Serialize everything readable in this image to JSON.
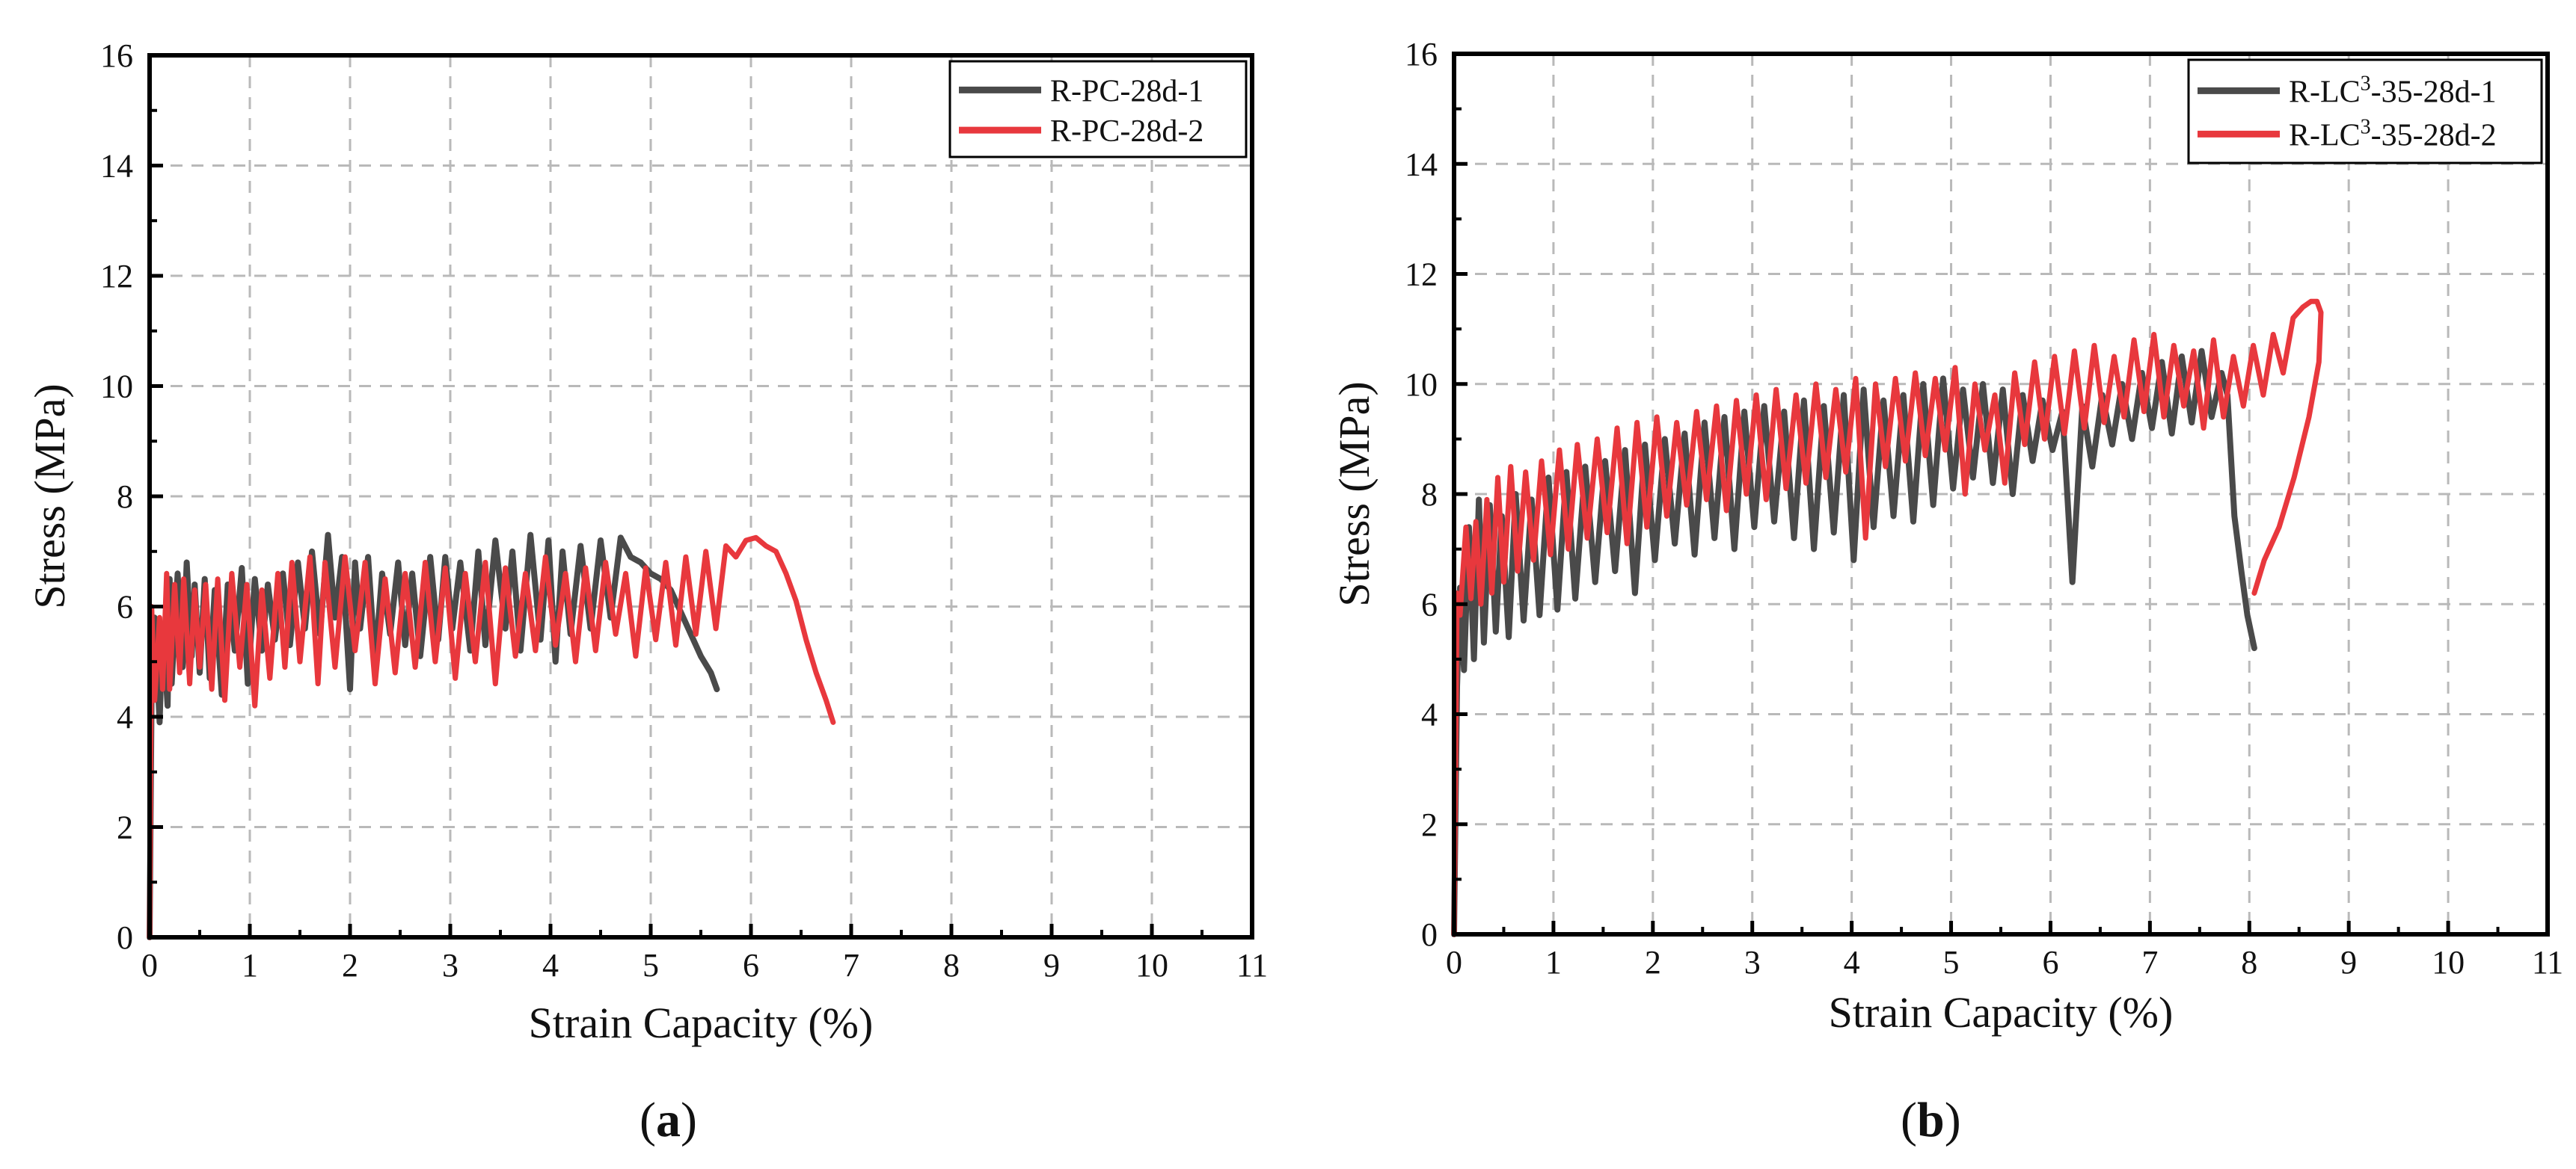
{
  "figure": {
    "panel_labels": [
      {
        "letter": "a"
      },
      {
        "letter": "b"
      }
    ]
  },
  "chart_data": [
    {
      "type": "line",
      "title": "",
      "xlabel": "Strain Capacity (%)",
      "ylabel": "Stress (MPa)",
      "xlim": [
        0,
        11
      ],
      "ylim": [
        0,
        16
      ],
      "xticks": [
        0,
        1,
        2,
        3,
        4,
        5,
        6,
        7,
        8,
        9,
        10,
        11
      ],
      "yticks": [
        0,
        2,
        4,
        6,
        8,
        10,
        12,
        14,
        16
      ],
      "grid": true,
      "legend_position": "top-right",
      "series": [
        {
          "name": "R-PC-28d-1",
          "name_sup": "",
          "name_rest": "",
          "color": "#4a4a4a",
          "x": [
            0,
            0.02,
            0.05,
            0.1,
            0.13,
            0.18,
            0.2,
            0.22,
            0.28,
            0.33,
            0.37,
            0.42,
            0.45,
            0.5,
            0.55,
            0.6,
            0.65,
            0.72,
            0.78,
            0.85,
            0.92,
            0.98,
            1.05,
            1.12,
            1.18,
            1.25,
            1.33,
            1.4,
            1.48,
            1.55,
            1.62,
            1.7,
            1.78,
            1.85,
            1.92,
            2.0,
            2.05,
            2.1,
            2.18,
            2.25,
            2.32,
            2.4,
            2.48,
            2.55,
            2.62,
            2.7,
            2.8,
            2.88,
            2.95,
            3.02,
            3.1,
            3.2,
            3.28,
            3.35,
            3.45,
            3.55,
            3.62,
            3.7,
            3.8,
            3.9,
            3.98,
            4.05,
            4.12,
            4.2,
            4.3,
            4.4,
            4.5,
            4.6,
            4.7,
            4.8,
            4.9,
            5.0,
            5.1,
            5.2,
            5.3,
            5.4,
            5.5,
            5.6,
            5.66
          ],
          "y": [
            0,
            4.5,
            5.8,
            3.9,
            5.6,
            4.2,
            6.5,
            4.6,
            6.6,
            4.9,
            6.8,
            5.1,
            6.4,
            4.8,
            6.5,
            4.7,
            6.3,
            4.4,
            6.4,
            5.2,
            6.7,
            4.6,
            6.5,
            5.2,
            6.4,
            5.4,
            6.6,
            5.3,
            6.8,
            5.6,
            7.0,
            5.5,
            7.3,
            5.8,
            6.9,
            4.5,
            6.8,
            5.6,
            6.9,
            5.0,
            6.6,
            5.5,
            6.8,
            5.3,
            6.6,
            5.1,
            6.9,
            5.4,
            6.9,
            5.6,
            6.8,
            5.2,
            7.0,
            5.3,
            7.2,
            5.6,
            7.0,
            5.2,
            7.3,
            5.4,
            7.2,
            5.0,
            7.0,
            5.5,
            7.1,
            5.6,
            7.2,
            5.8,
            7.25,
            6.9,
            6.8,
            6.6,
            6.5,
            6.3,
            5.9,
            5.5,
            5.1,
            4.8,
            4.5
          ]
        },
        {
          "name": "R-PC-28d-2",
          "name_sup": "",
          "name_rest": "",
          "color": "#e8383d",
          "x": [
            0,
            0.02,
            0.05,
            0.1,
            0.13,
            0.17,
            0.2,
            0.25,
            0.3,
            0.34,
            0.4,
            0.45,
            0.5,
            0.56,
            0.62,
            0.68,
            0.75,
            0.82,
            0.9,
            0.97,
            1.05,
            1.12,
            1.2,
            1.28,
            1.35,
            1.42,
            1.5,
            1.6,
            1.68,
            1.75,
            1.85,
            1.95,
            2.05,
            2.15,
            2.25,
            2.35,
            2.45,
            2.55,
            2.65,
            2.75,
            2.85,
            2.95,
            3.05,
            3.15,
            3.25,
            3.35,
            3.45,
            3.55,
            3.65,
            3.75,
            3.85,
            3.95,
            4.05,
            4.15,
            4.25,
            4.35,
            4.45,
            4.55,
            4.65,
            4.75,
            4.85,
            4.95,
            5.05,
            5.15,
            5.25,
            5.35,
            5.45,
            5.55,
            5.65,
            5.75,
            5.85,
            5.95,
            6.05,
            6.15,
            6.25,
            6.35,
            6.45,
            6.55,
            6.65,
            6.75,
            6.82
          ],
          "y": [
            0,
            6.0,
            4.3,
            5.8,
            4.5,
            6.6,
            4.5,
            6.4,
            4.8,
            6.5,
            4.6,
            6.3,
            4.9,
            6.4,
            4.5,
            6.5,
            4.3,
            6.6,
            4.9,
            6.4,
            4.2,
            6.3,
            4.7,
            6.6,
            4.9,
            6.8,
            5.0,
            6.9,
            4.6,
            6.8,
            4.9,
            6.9,
            5.2,
            6.8,
            4.6,
            6.5,
            4.8,
            6.6,
            4.9,
            6.8,
            5.0,
            6.7,
            4.7,
            6.6,
            5.0,
            6.8,
            4.6,
            6.7,
            5.1,
            6.6,
            5.2,
            6.9,
            5.3,
            6.6,
            5.0,
            6.7,
            5.2,
            6.8,
            5.5,
            6.6,
            5.1,
            6.7,
            5.4,
            6.8,
            5.3,
            6.9,
            5.5,
            7.0,
            5.6,
            7.1,
            6.9,
            7.2,
            7.25,
            7.1,
            7.0,
            6.6,
            6.1,
            5.4,
            4.8,
            4.3,
            3.9
          ]
        }
      ]
    },
    {
      "type": "line",
      "title": "",
      "xlabel": "Strain Capacity (%)",
      "ylabel": "Stress (MPa)",
      "xlim": [
        0,
        11
      ],
      "ylim": [
        0,
        16
      ],
      "xticks": [
        0,
        1,
        2,
        3,
        4,
        5,
        6,
        7,
        8,
        9,
        10,
        11
      ],
      "yticks": [
        0,
        2,
        4,
        6,
        8,
        10,
        12,
        14,
        16
      ],
      "grid": true,
      "legend_position": "top-right",
      "series": [
        {
          "name": "R-LC",
          "name_sup": "3",
          "name_rest": "-35-28d-1",
          "color": "#4a4a4a",
          "x": [
            0,
            0.03,
            0.06,
            0.1,
            0.15,
            0.2,
            0.25,
            0.3,
            0.36,
            0.42,
            0.48,
            0.55,
            0.62,
            0.7,
            0.78,
            0.86,
            0.95,
            1.04,
            1.13,
            1.22,
            1.32,
            1.42,
            1.52,
            1.62,
            1.72,
            1.82,
            1.92,
            2.02,
            2.12,
            2.22,
            2.32,
            2.42,
            2.52,
            2.62,
            2.72,
            2.82,
            2.92,
            3.02,
            3.12,
            3.22,
            3.32,
            3.42,
            3.52,
            3.62,
            3.72,
            3.82,
            3.92,
            4.02,
            4.12,
            4.22,
            4.32,
            4.42,
            4.52,
            4.62,
            4.72,
            4.82,
            4.92,
            5.02,
            5.12,
            5.22,
            5.32,
            5.42,
            5.52,
            5.62,
            5.72,
            5.82,
            5.92,
            6.02,
            6.12,
            6.22,
            6.32,
            6.42,
            6.52,
            6.62,
            6.72,
            6.82,
            6.92,
            7.02,
            7.12,
            7.22,
            7.32,
            7.42,
            7.52,
            7.62,
            7.72,
            7.78,
            7.85,
            7.92,
            7.98,
            8.05
          ],
          "y": [
            0,
            4.5,
            6.3,
            4.8,
            7.4,
            5.0,
            7.9,
            5.3,
            7.8,
            5.5,
            7.6,
            5.4,
            8.0,
            5.7,
            7.9,
            5.8,
            8.3,
            5.9,
            8.4,
            6.1,
            8.5,
            6.4,
            8.6,
            6.6,
            8.8,
            6.2,
            8.9,
            6.8,
            9.0,
            7.1,
            9.1,
            6.9,
            9.3,
            7.2,
            9.4,
            7.0,
            9.5,
            7.4,
            9.6,
            7.5,
            9.5,
            7.2,
            9.7,
            7.0,
            9.6,
            7.3,
            9.8,
            6.8,
            9.9,
            7.4,
            9.7,
            7.6,
            9.8,
            7.5,
            10.0,
            7.8,
            10.1,
            8.1,
            9.9,
            8.3,
            10.0,
            8.2,
            9.9,
            8.0,
            9.8,
            8.6,
            9.7,
            8.8,
            9.5,
            6.4,
            9.6,
            8.5,
            9.8,
            8.9,
            10.0,
            9.0,
            10.2,
            9.2,
            10.4,
            9.1,
            10.5,
            9.3,
            10.6,
            9.4,
            10.2,
            9.8,
            7.6,
            6.6,
            5.8,
            5.2
          ]
        },
        {
          "name": "R-LC",
          "name_sup": "3",
          "name_rest": "-35-28d-2",
          "color": "#e8383d",
          "x": [
            0,
            0.03,
            0.06,
            0.12,
            0.17,
            0.22,
            0.27,
            0.33,
            0.38,
            0.44,
            0.5,
            0.57,
            0.64,
            0.72,
            0.8,
            0.88,
            0.97,
            1.06,
            1.15,
            1.24,
            1.34,
            1.44,
            1.54,
            1.64,
            1.74,
            1.84,
            1.94,
            2.04,
            2.14,
            2.24,
            2.34,
            2.44,
            2.54,
            2.64,
            2.74,
            2.84,
            2.94,
            3.04,
            3.14,
            3.24,
            3.34,
            3.44,
            3.54,
            3.64,
            3.74,
            3.84,
            3.94,
            4.04,
            4.14,
            4.24,
            4.34,
            4.44,
            4.54,
            4.64,
            4.74,
            4.84,
            4.94,
            5.04,
            5.14,
            5.24,
            5.34,
            5.44,
            5.54,
            5.64,
            5.74,
            5.84,
            5.94,
            6.04,
            6.14,
            6.24,
            6.34,
            6.44,
            6.54,
            6.64,
            6.74,
            6.84,
            6.94,
            7.04,
            7.14,
            7.24,
            7.34,
            7.44,
            7.54,
            7.64,
            7.74,
            7.84,
            7.94,
            8.04,
            8.14,
            8.24,
            8.34,
            8.44,
            8.54,
            8.62,
            8.68,
            8.72,
            8.7,
            8.6,
            8.45,
            8.3,
            8.15,
            8.05
          ],
          "y": [
            0,
            6.2,
            5.8,
            7.4,
            6.1,
            7.5,
            6.0,
            7.9,
            6.2,
            8.3,
            6.4,
            8.5,
            6.6,
            8.4,
            6.8,
            8.6,
            6.9,
            8.8,
            7.0,
            8.9,
            7.2,
            9.0,
            7.3,
            9.2,
            7.1,
            9.3,
            7.4,
            9.4,
            7.6,
            9.3,
            7.8,
            9.5,
            7.9,
            9.6,
            7.7,
            9.7,
            8.0,
            9.8,
            7.9,
            9.9,
            8.1,
            9.8,
            8.2,
            10.0,
            8.3,
            9.9,
            8.4,
            10.1,
            7.2,
            10.0,
            8.5,
            10.1,
            8.6,
            10.2,
            8.7,
            10.1,
            8.8,
            10.3,
            8.0,
            10.0,
            8.8,
            9.8,
            8.2,
            10.2,
            8.9,
            10.4,
            9.0,
            10.5,
            9.1,
            10.6,
            9.2,
            10.7,
            9.3,
            10.5,
            9.4,
            10.8,
            9.5,
            10.9,
            9.4,
            10.7,
            9.6,
            10.6,
            9.2,
            10.8,
            9.4,
            10.5,
            9.6,
            10.7,
            9.8,
            10.9,
            10.2,
            11.2,
            11.4,
            11.5,
            11.5,
            11.3,
            10.4,
            9.4,
            8.3,
            7.4,
            6.8,
            6.2
          ]
        }
      ]
    }
  ]
}
